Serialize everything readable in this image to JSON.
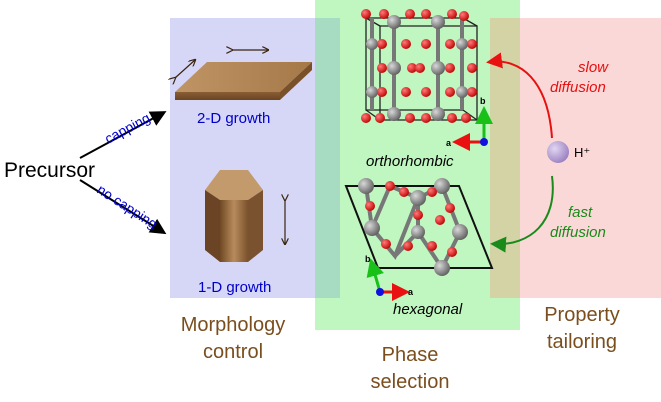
{
  "precursor": "Precursor",
  "branch_top": "capping",
  "branch_bottom": "no capping",
  "growth_2d": "2-D growth",
  "growth_1d": "1-D growth",
  "phase_ortho": "orthorhombic",
  "phase_hex": "hexagonal",
  "ion_label": "H⁺",
  "slow_line1": "slow",
  "slow_line2": "diffusion",
  "fast_line1": "fast",
  "fast_line2": "diffusion",
  "axis_a": "a",
  "axis_b": "b",
  "panel_morphology_line1": "Morphology",
  "panel_morphology_line2": "control",
  "panel_phase_line1": "Phase",
  "panel_phase_line2": "selection",
  "panel_property_line1": "Property",
  "panel_property_line2": "tailoring",
  "colors": {
    "morphology_panel": "#d6d6f7",
    "phase_panel": "#bdf5bd",
    "property_panel": "#fbd4d4",
    "blue_text": "#0000cc",
    "brown_text": "#7a4e1e",
    "slow_arrow": "#e81010",
    "fast_arrow": "#1a8a1a",
    "oxygen": "#e01010",
    "metal": "#7a7a7a",
    "ion": "#b9a3d6"
  }
}
